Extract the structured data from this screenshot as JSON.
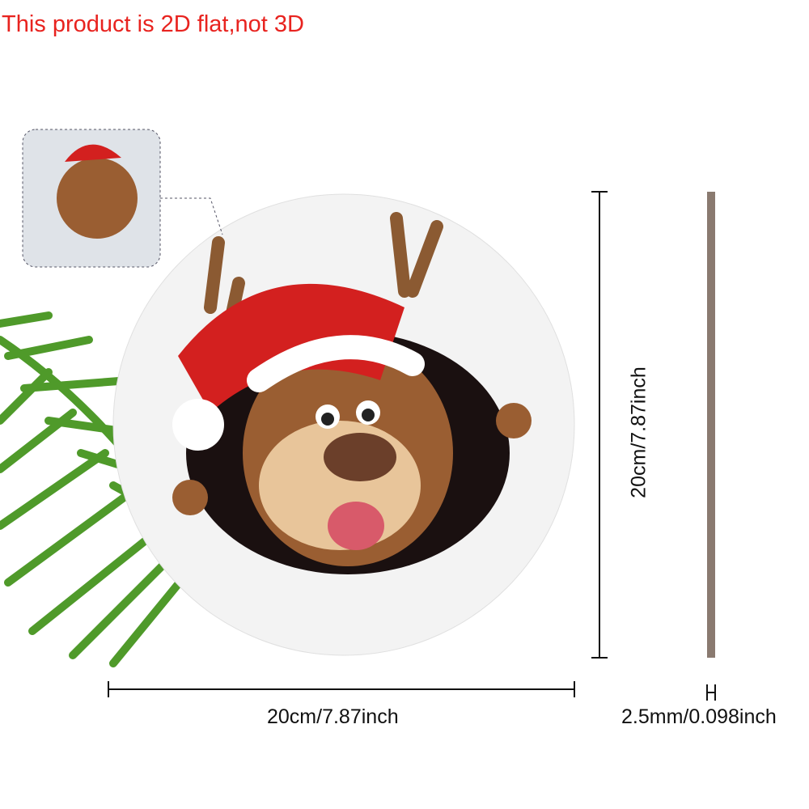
{
  "headline": "This product is 2D flat,not 3D",
  "dimensions": {
    "width": "20cm/7.87inch",
    "height": "20cm/7.87inch",
    "thickness": "2.5mm/0.098inch"
  },
  "colors": {
    "headline": "#e8231f",
    "edge": "#8a7a70",
    "hat": "#d3201f",
    "fur": "#9a5e32"
  }
}
